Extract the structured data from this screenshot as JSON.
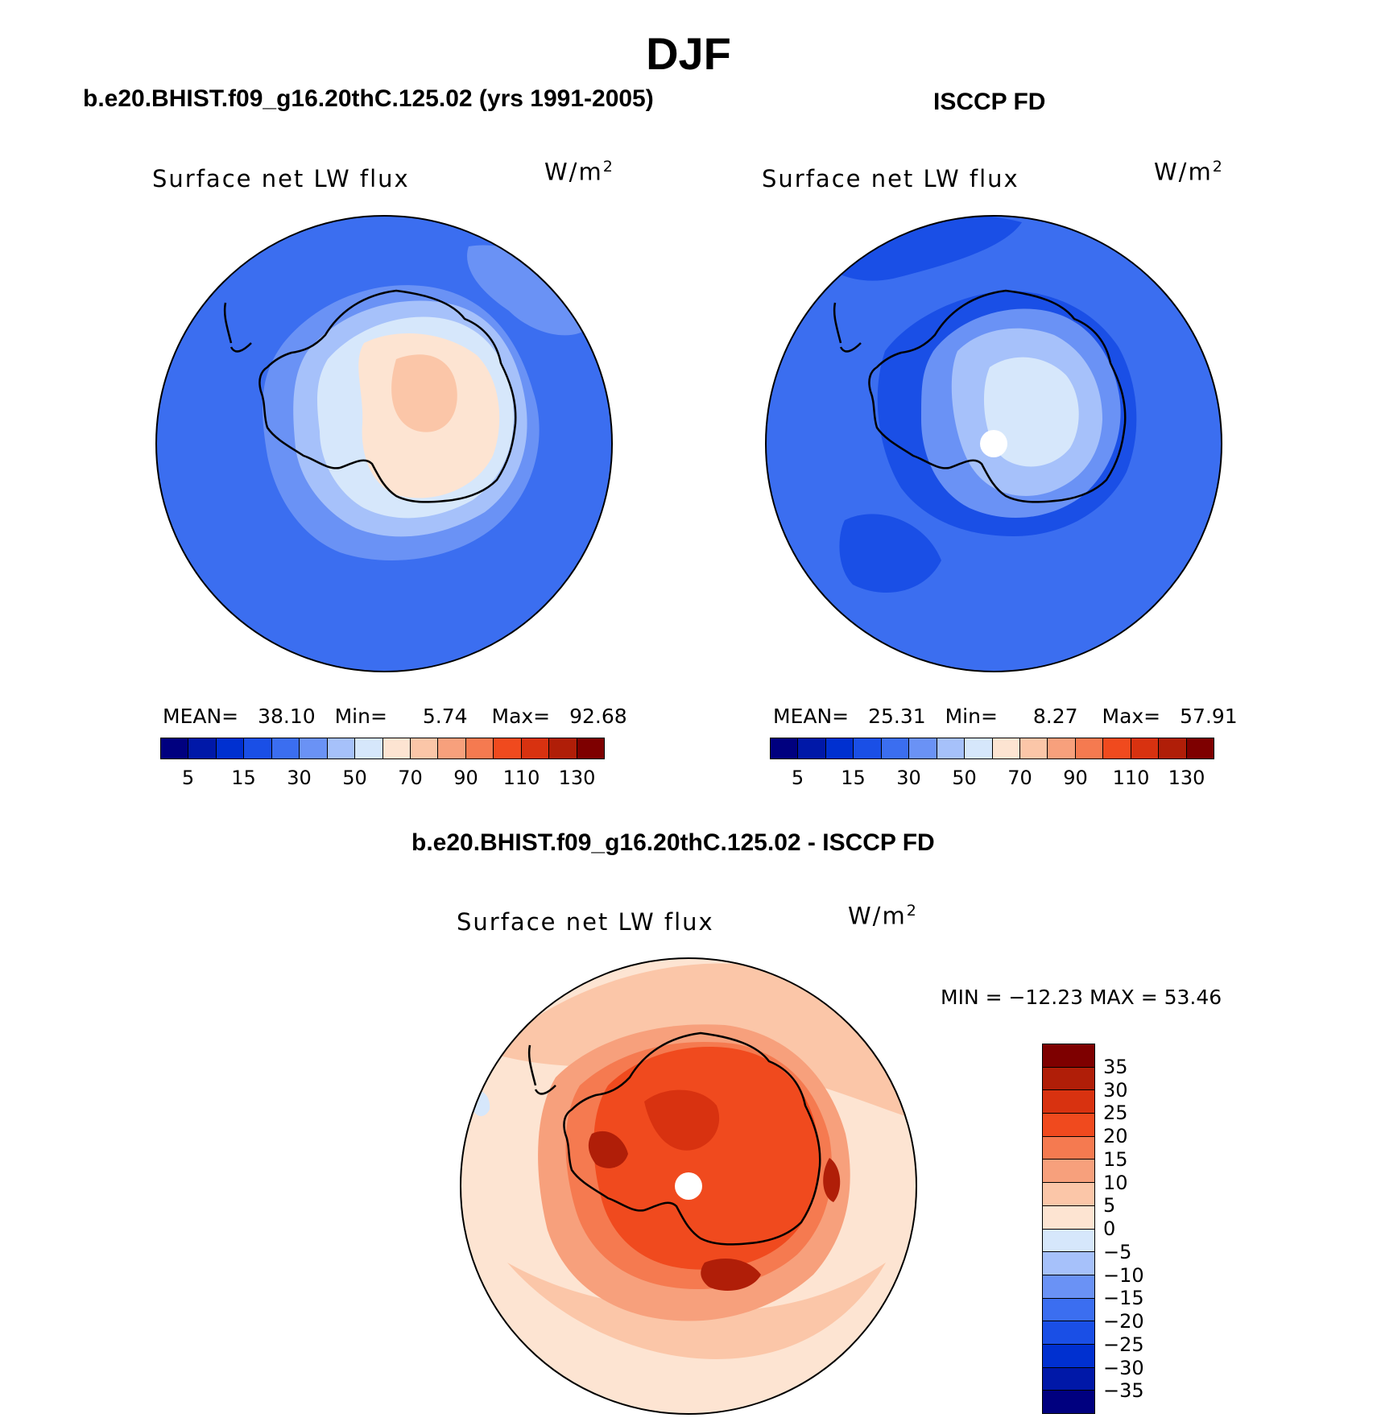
{
  "figure": {
    "title": "DJF"
  },
  "panels": [
    {
      "id": "model",
      "case_title": "b.e20.BHIST.f09_g16.20thC.125.02 (yrs 1991-2005)",
      "variable_label": "Surface net LW flux",
      "units": "W/m",
      "units_exp": "2",
      "stats": {
        "mean_label": "MEAN=",
        "mean": "38.10",
        "min_label": "Min=",
        "min": "5.74",
        "max_label": "Max=",
        "max": "92.68"
      },
      "colorbar_ticks": [
        "5",
        "15",
        "30",
        "50",
        "70",
        "90",
        "110",
        "130"
      ]
    },
    {
      "id": "obs",
      "case_title": "ISCCP FD",
      "variable_label": "Surface net LW flux",
      "units": "W/m",
      "units_exp": "2",
      "stats": {
        "mean_label": "MEAN=",
        "mean": "25.31",
        "min_label": "Min=",
        "min": "8.27",
        "max_label": "Max=",
        "max": "57.91"
      },
      "colorbar_ticks": [
        "5",
        "15",
        "30",
        "50",
        "70",
        "90",
        "110",
        "130"
      ]
    }
  ],
  "diff_panel": {
    "case_title": "b.e20.BHIST.f09_g16.20thC.125.02 - ISCCP FD",
    "variable_label": "Surface net LW flux",
    "units": "W/m",
    "units_exp": "2",
    "minmax_text": "MIN = −12.23 MAX =   53.46",
    "colorbar_ticks": [
      "35",
      "30",
      "25",
      "20",
      "15",
      "10",
      "5",
      "0",
      "−5",
      "−10",
      "−15",
      "−20",
      "−25",
      "−30",
      "−35"
    ]
  },
  "colorscales": {
    "abs": [
      "#00007f",
      "#0018a8",
      "#0030d0",
      "#1a4fe6",
      "#3b6ef0",
      "#6a92f5",
      "#a6c1fa",
      "#d6e7fb",
      "#fde4d2",
      "#fbc6a8",
      "#f7a07c",
      "#f57a50",
      "#f04a1e",
      "#d83210",
      "#b01e08",
      "#7e0000"
    ],
    "diff": [
      "#7e0000",
      "#b01e08",
      "#d83210",
      "#f04a1e",
      "#f57a50",
      "#f7a07c",
      "#fbc6a8",
      "#fde4d2",
      "#d6e7fb",
      "#a6c1fa",
      "#6a92f5",
      "#3b6ef0",
      "#1a4fe6",
      "#0030d0",
      "#0018a8",
      "#00007f"
    ]
  },
  "map_colors": {
    "model_ocean": "#3b6ef0",
    "model_ocean_light": "#6a92f5",
    "model_ice_edge": "#a6c1fa",
    "model_ice": "#d6e7fb",
    "model_interior": "#fde4d2",
    "model_core": "#fbc6a8",
    "obs_ocean": "#3b6ef0",
    "obs_ocean_dark": "#1a4fe6",
    "obs_ocean_darker": "#0030d0",
    "obs_ice": "#6a92f5",
    "obs_ice_light": "#a6c1fa",
    "obs_core": "#d6e7fb",
    "diff_far": "#fde4d2",
    "diff_mid": "#fbc6a8",
    "diff_near": "#f7a07c",
    "diff_coast": "#f57a50",
    "diff_land": "#f04a1e",
    "diff_land_dark": "#d83210",
    "diff_hot": "#b01e08",
    "diff_neg": "#d6e7fb"
  }
}
